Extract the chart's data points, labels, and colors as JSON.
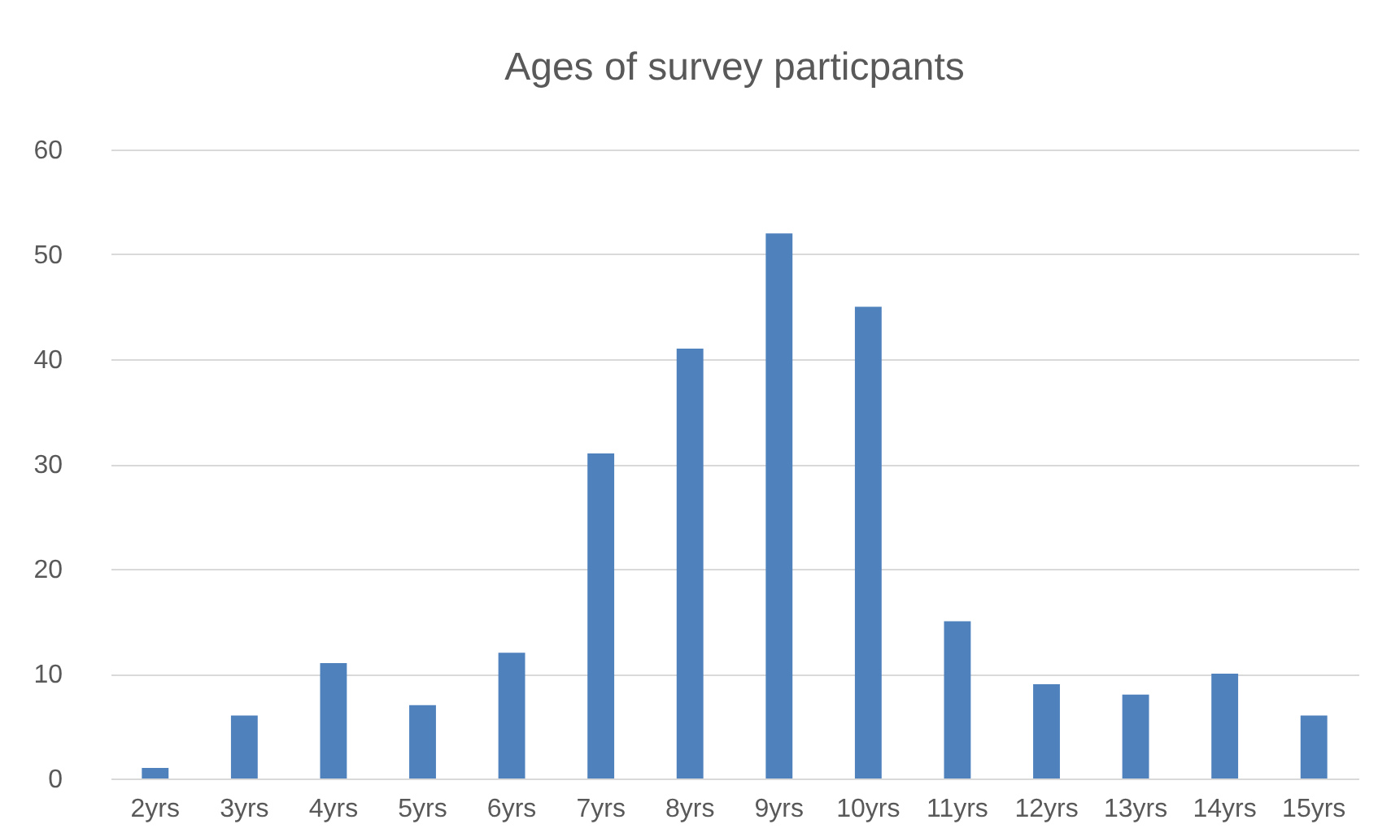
{
  "chart_data": {
    "type": "bar",
    "title": "Ages of survey particpants",
    "categories": [
      "2yrs",
      "3yrs",
      "4yrs",
      "5yrs",
      "6yrs",
      "7yrs",
      "8yrs",
      "9yrs",
      "10yrs",
      "11yrs",
      "12yrs",
      "13yrs",
      "14yrs",
      "15yrs"
    ],
    "values": [
      1,
      6,
      11,
      7,
      12,
      31,
      41,
      52,
      45,
      15,
      9,
      8,
      10,
      6
    ],
    "color": "#4f81bd",
    "ylim": [
      0,
      60
    ],
    "yticks": [
      0,
      10,
      20,
      30,
      40,
      50,
      60
    ],
    "grid": "y"
  }
}
